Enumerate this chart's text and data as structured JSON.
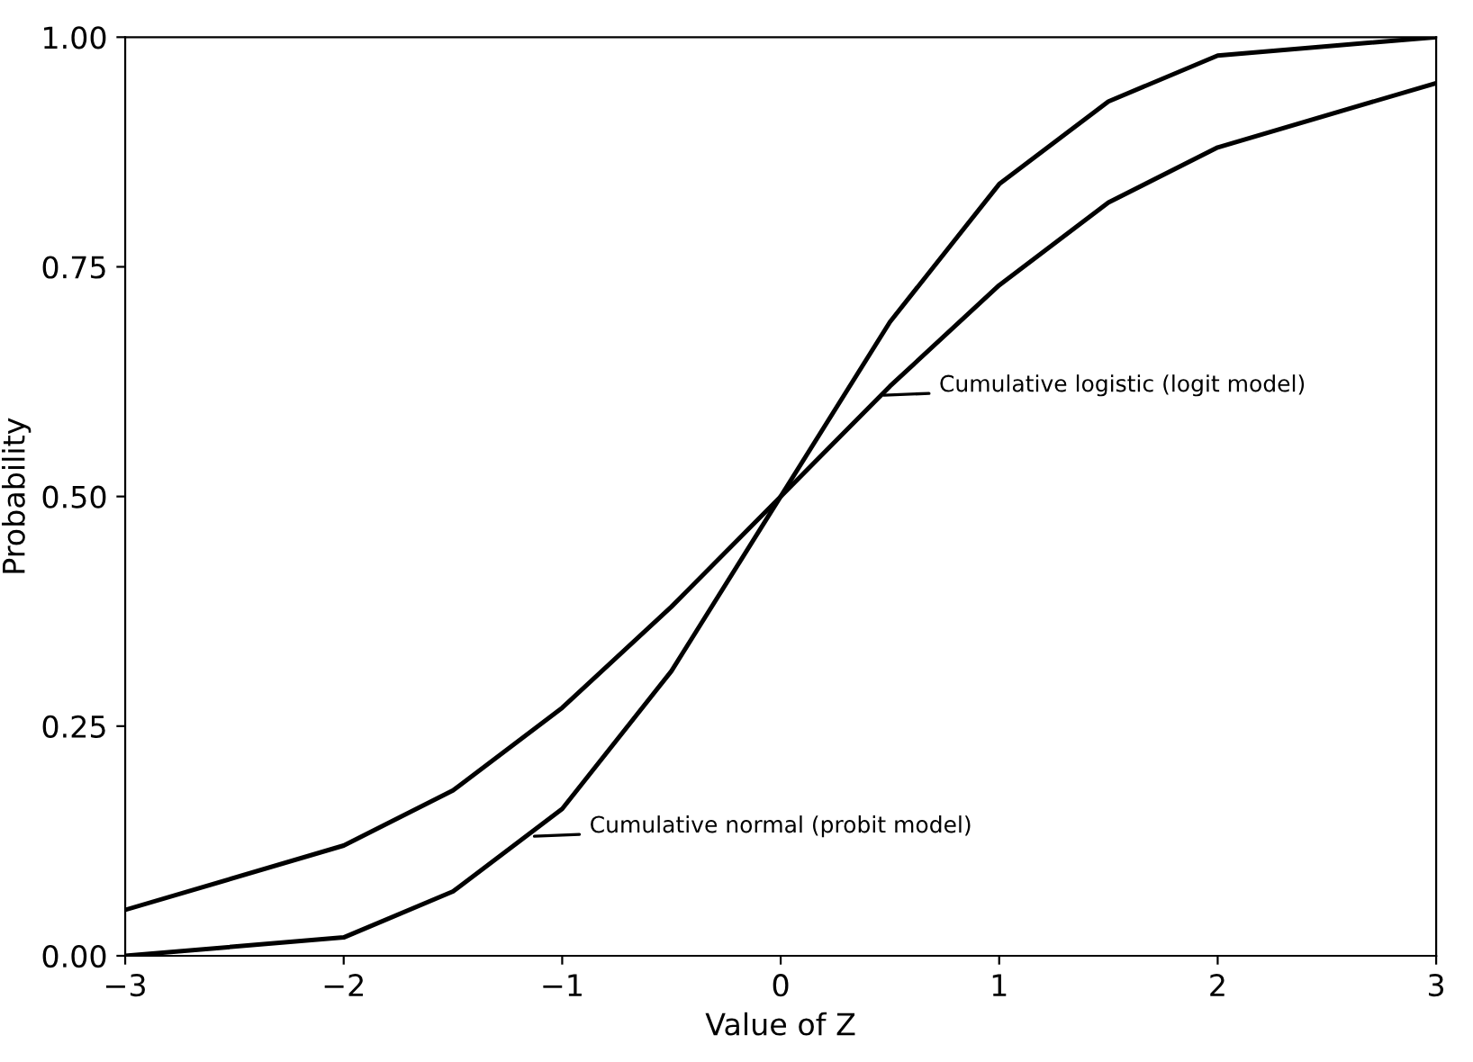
{
  "chart_data": {
    "type": "line",
    "xlabel": "Value of Z",
    "ylabel": "Probability",
    "x": [
      -3,
      -2,
      -1.5,
      -1,
      -0.5,
      0,
      0.5,
      1,
      1.5,
      2,
      3
    ],
    "series": [
      {
        "color": "#000000",
        "values": [
          0.05,
          0.12,
          0.18,
          0.27,
          0.38,
          0.5,
          0.62,
          0.73,
          0.82,
          0.88,
          0.95
        ]
      },
      {
        "color": "#000000",
        "values": [
          0.0,
          0.02,
          0.07,
          0.16,
          0.31,
          0.5,
          0.69,
          0.84,
          0.93,
          0.98,
          1.0
        ]
      }
    ],
    "xlim": [
      -3,
      3
    ],
    "ylim": [
      0,
      1
    ],
    "xticks": [
      {
        "value": -3,
        "label": "−3"
      },
      {
        "value": -2,
        "label": "−2"
      },
      {
        "value": -1,
        "label": "−1"
      },
      0,
      1,
      2,
      3
    ],
    "yticks": [
      {
        "value": 0,
        "label": "0.00"
      },
      {
        "value": 0.25,
        "label": "0.25"
      },
      {
        "value": 0.5,
        "label": "0.50"
      },
      {
        "value": 0.75,
        "label": "0.75"
      },
      {
        "value": 1,
        "label": "1.00"
      }
    ],
    "annotations": [
      {
        "text": "Cumulative logistic (logit model)",
        "x": 0.45,
        "y": 0.61
      },
      {
        "text": "Cumulative normal (probit model)",
        "x": -1.15,
        "y": 0.13
      }
    ],
    "grid": false,
    "legend": false,
    "marker": "none",
    "line_style": "solid"
  }
}
